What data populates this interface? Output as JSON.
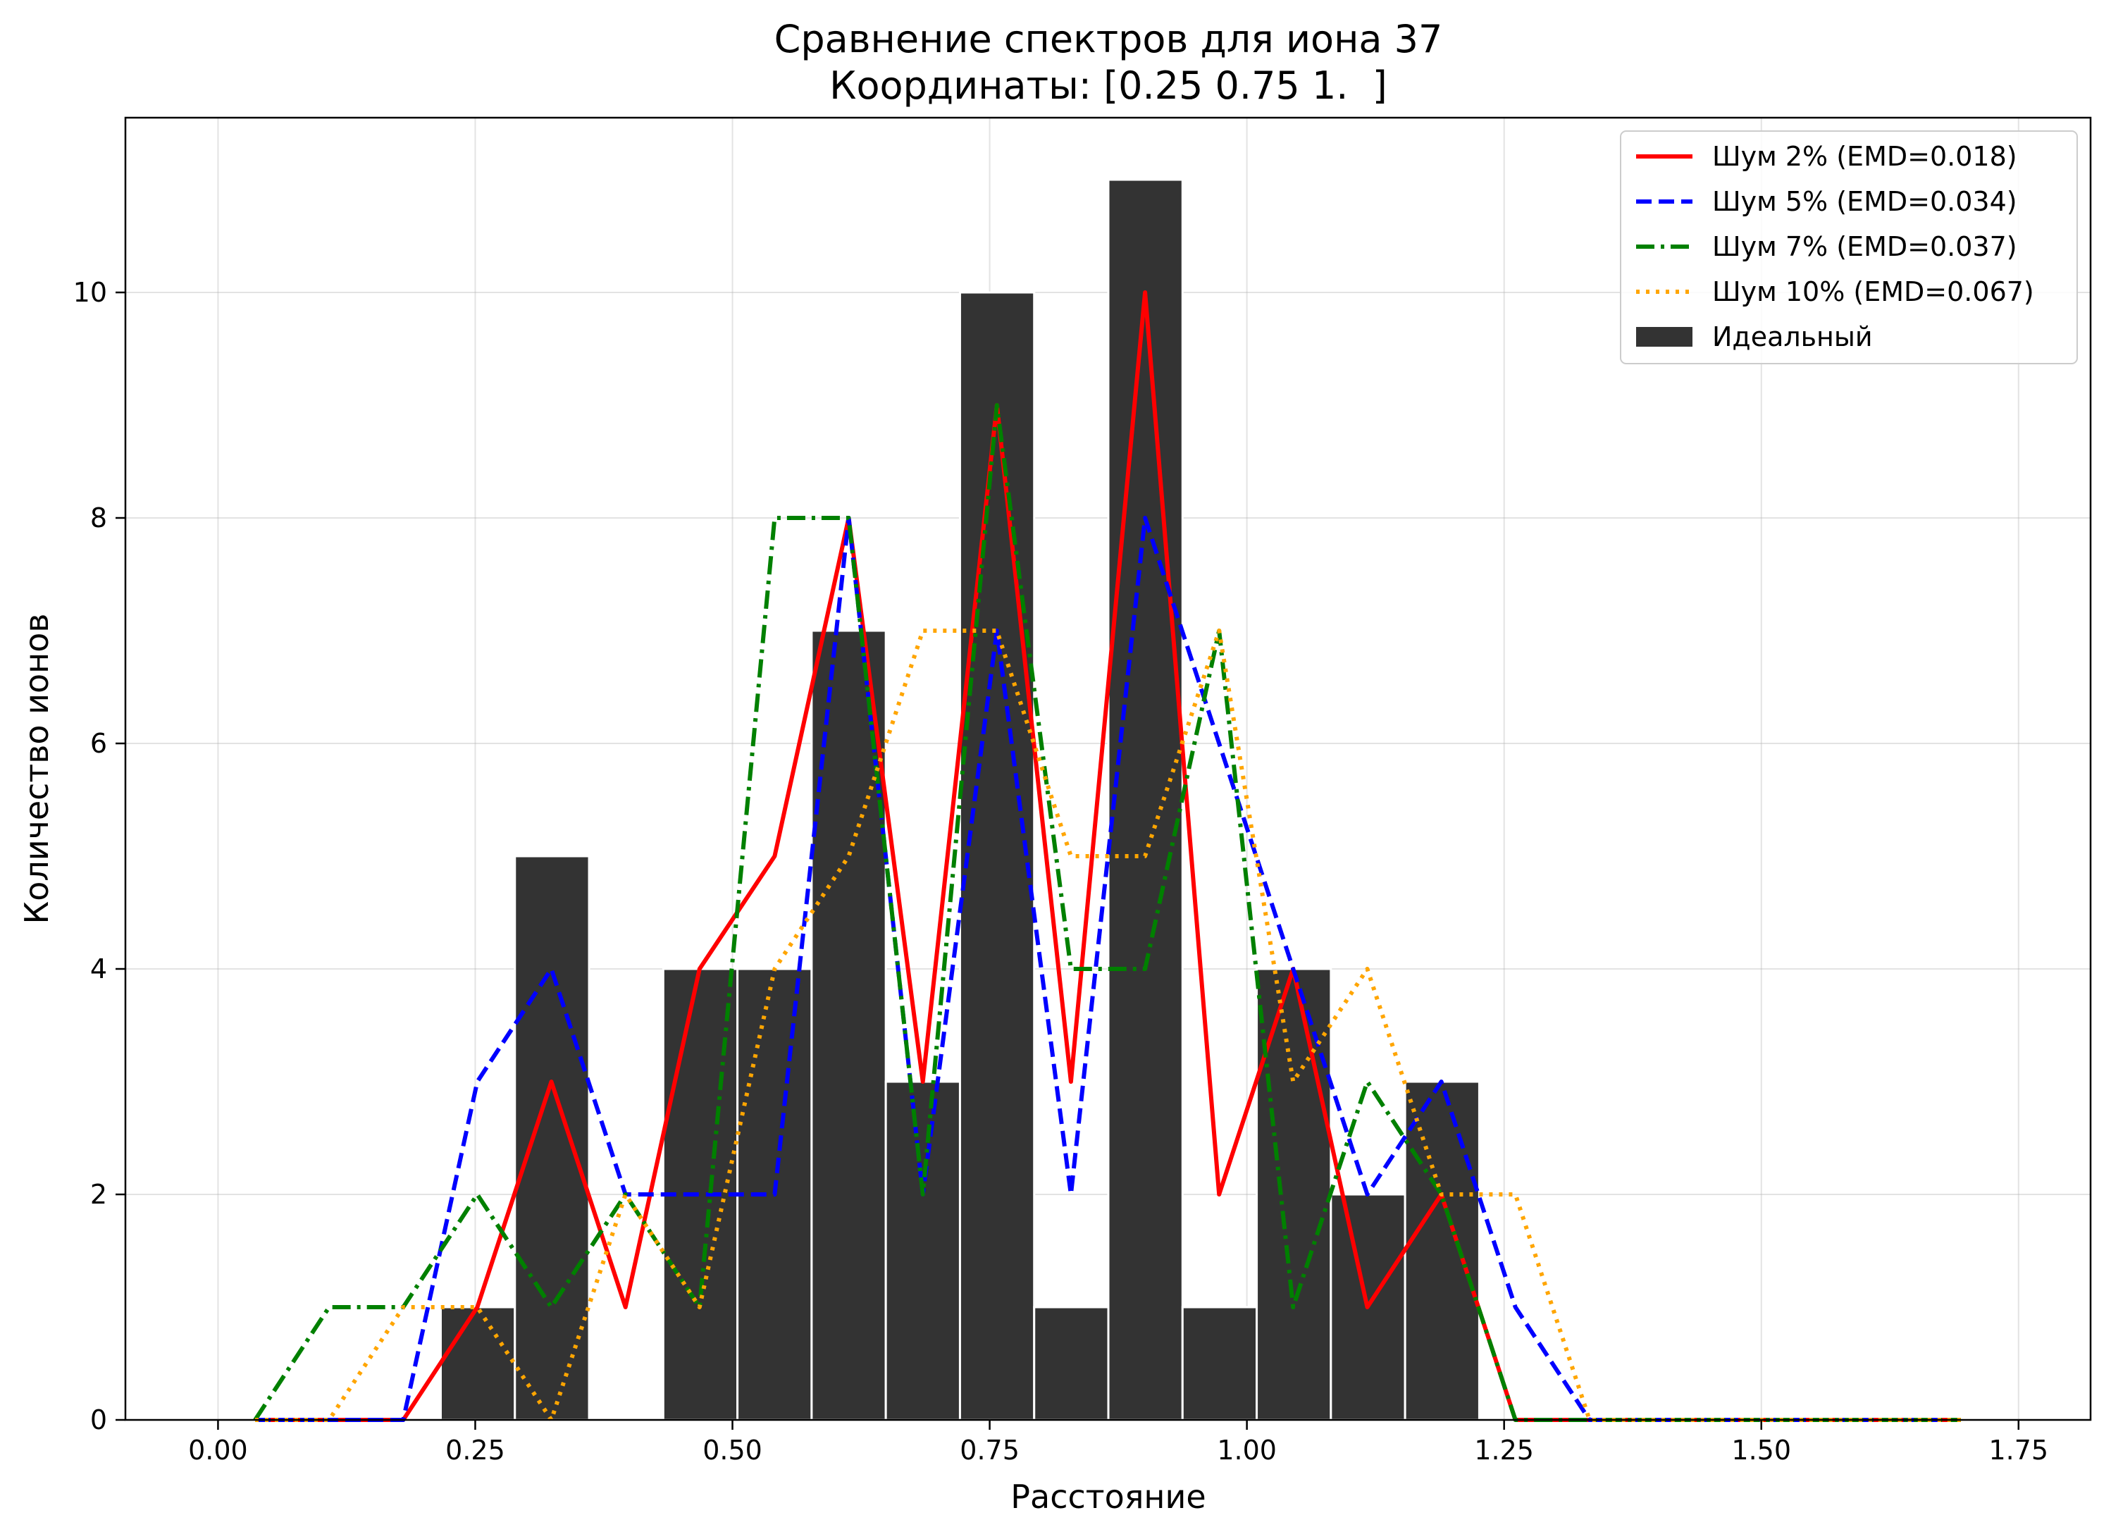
{
  "chart_data": {
    "type": "bar",
    "title": "Сравнение спектров для иона 37",
    "subtitle": "Координаты: [0.25 0.75 1.  ]",
    "xlabel": "Расстояние",
    "ylabel": "Количество ионов",
    "xlim": [
      -0.09,
      1.82
    ],
    "ylim": [
      0,
      11.55
    ],
    "xticks": [
      "0.00",
      "0.25",
      "0.50",
      "0.75",
      "1.00",
      "1.25",
      "1.50",
      "1.75"
    ],
    "xtick_values": [
      0,
      0.25,
      0.5,
      0.75,
      1.0,
      1.25,
      1.5,
      1.75
    ],
    "yticks": [
      "0",
      "2",
      "4",
      "6",
      "8",
      "10"
    ],
    "ytick_values": [
      0,
      2,
      4,
      6,
      8,
      10
    ],
    "grid": true,
    "legend_position": "top-right",
    "bars": {
      "name": "Идеальный",
      "color": "#333333",
      "edge_color": "#ffffff",
      "bin_width": 0.0721,
      "centers": [
        0.2525,
        0.3246,
        0.4688,
        0.5409,
        0.613,
        0.6851,
        0.7572,
        0.8293,
        0.9014,
        0.9735,
        1.0456,
        1.1177,
        1.1898
      ],
      "values": [
        1,
        5,
        4,
        4,
        7,
        3,
        10,
        1,
        11,
        1,
        4,
        2,
        3
      ]
    },
    "series": [
      {
        "name": "Шум 2% (EMD=0.018)",
        "color": "#ff0000",
        "style": "solid",
        "x": [
          0.036,
          0.108,
          0.18,
          0.252,
          0.324,
          0.396,
          0.468,
          0.541,
          0.613,
          0.685,
          0.757,
          0.829,
          0.901,
          0.973,
          1.045,
          1.117,
          1.189,
          1.261,
          1.333,
          1.405,
          1.478,
          1.55,
          1.622,
          1.694
        ],
        "values": [
          0,
          0,
          0,
          1,
          3,
          1,
          4,
          5,
          8,
          3,
          9,
          3,
          10,
          2,
          4,
          1,
          2,
          0,
          0,
          0,
          0,
          0,
          0,
          0
        ]
      },
      {
        "name": "Шум 5% (EMD=0.034)",
        "color": "#0000ff",
        "style": "dashed",
        "x": [
          0.036,
          0.108,
          0.18,
          0.252,
          0.324,
          0.396,
          0.468,
          0.541,
          0.613,
          0.685,
          0.757,
          0.829,
          0.901,
          0.973,
          1.045,
          1.117,
          1.189,
          1.261,
          1.333,
          1.405,
          1.478,
          1.55,
          1.622,
          1.694
        ],
        "values": [
          0,
          0,
          0,
          3,
          4,
          2,
          2,
          2,
          8,
          2,
          7,
          2,
          8,
          6,
          4,
          2,
          3,
          1,
          0,
          0,
          0,
          0,
          0,
          0
        ]
      },
      {
        "name": "Шум 7% (EMD=0.037)",
        "color": "#008000",
        "style": "dashdot",
        "x": [
          0.036,
          0.108,
          0.18,
          0.252,
          0.324,
          0.396,
          0.468,
          0.541,
          0.613,
          0.685,
          0.757,
          0.829,
          0.901,
          0.973,
          1.045,
          1.117,
          1.189,
          1.261,
          1.333,
          1.405,
          1.478,
          1.55,
          1.622,
          1.694
        ],
        "values": [
          0,
          1,
          1,
          2,
          1,
          2,
          1,
          8,
          8,
          2,
          9,
          4,
          4,
          7,
          1,
          3,
          2,
          0,
          0,
          0,
          0,
          0,
          0,
          0
        ]
      },
      {
        "name": "Шум 10% (EMD=0.067)",
        "color": "#ffa500",
        "style": "dotted",
        "x": [
          0.036,
          0.108,
          0.18,
          0.252,
          0.324,
          0.396,
          0.468,
          0.541,
          0.613,
          0.685,
          0.757,
          0.829,
          0.901,
          0.973,
          1.045,
          1.117,
          1.189,
          1.261,
          1.333,
          1.405,
          1.478,
          1.55,
          1.622,
          1.694
        ],
        "values": [
          0,
          0,
          1,
          1,
          0,
          2,
          1,
          4,
          5,
          7,
          7,
          5,
          5,
          7,
          3,
          4,
          2,
          2,
          0,
          0,
          0,
          0,
          0,
          0
        ]
      }
    ]
  }
}
